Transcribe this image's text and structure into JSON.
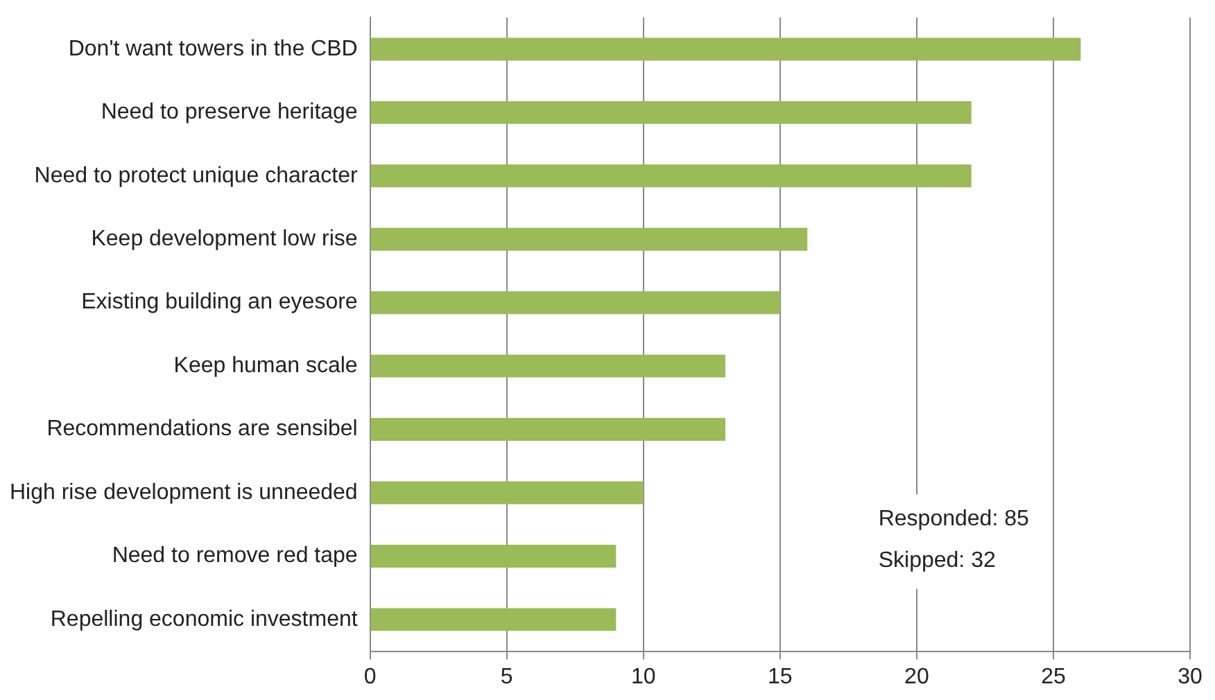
{
  "chart_data": {
    "type": "bar",
    "orientation": "horizontal",
    "categories": [
      "Don't want towers in the CBD",
      "Need to preserve heritage",
      "Need to protect unique character",
      "Keep development low rise",
      "Existing building an eyesore",
      "Keep human scale",
      "Recommendations are sensibel",
      "High rise development is unneeded",
      "Need to remove red tape",
      "Repelling economic investment"
    ],
    "values": [
      26,
      22,
      22,
      16,
      15,
      13,
      13,
      10,
      9,
      9
    ],
    "color": "#9bbb59",
    "xlim": [
      0,
      30
    ],
    "xticks": [
      0,
      5,
      10,
      15,
      20,
      25,
      30
    ],
    "grid": "x",
    "annotations": [
      "Responded: 85",
      "Skipped: 32"
    ]
  }
}
